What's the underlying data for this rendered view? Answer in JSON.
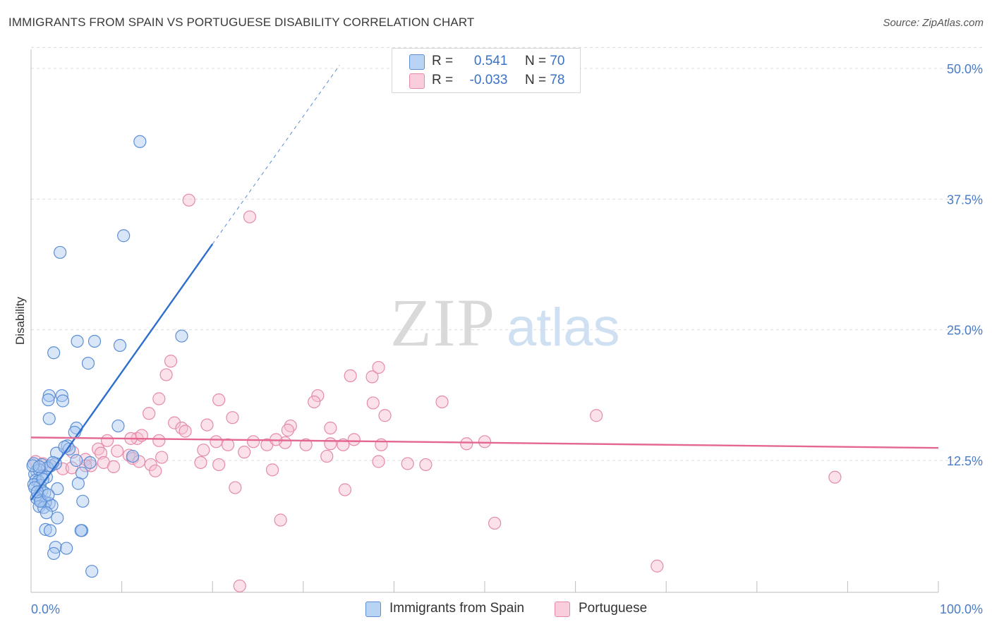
{
  "title": "IMMIGRANTS FROM SPAIN VS PORTUGUESE DISABILITY CORRELATION CHART",
  "source": "Source: ZipAtlas.com",
  "watermark": {
    "zip": "ZIP",
    "atlas": "atlas"
  },
  "legend": {
    "rows": [
      {
        "r_label": "R =",
        "r_value": "0.541",
        "n_label": "N =",
        "n_value": "70"
      },
      {
        "r_label": "R =",
        "r_value": "-0.033",
        "n_label": "N =",
        "n_value": "78"
      }
    ]
  },
  "bottom_legend": [
    "Immigrants from Spain",
    "Portuguese"
  ],
  "colors": {
    "spain_fill": "#a9c8f0",
    "spain_stroke": "#5b8fd6",
    "spain_line": "#2f6fcc",
    "portuguese_fill": "#f6bfd0",
    "portuguese_stroke": "#e58aa8",
    "portuguese_line": "#e3678f",
    "tick_text": "#4a7cc7",
    "grid": "#dcdcdc"
  },
  "chart_data": {
    "type": "scatter",
    "title": "IMMIGRANTS FROM SPAIN VS PORTUGUESE DISABILITY CORRELATION CHART",
    "xlabel": "",
    "ylabel": "Disability",
    "xlim": [
      0,
      100
    ],
    "ylim": [
      0,
      52
    ],
    "x_tick_labels": [
      "0.0%",
      "100.0%"
    ],
    "y_ticks": [
      12.5,
      25.0,
      37.5,
      50.0
    ],
    "y_tick_labels": [
      "12.5%",
      "25.0%",
      "37.5%",
      "50.0%"
    ],
    "grid": true,
    "legend_position": "top-center",
    "series": [
      {
        "name": "Immigrants from Spain",
        "r": 0.541,
        "n": 70,
        "trend": {
          "x0": 0.0,
          "y0": 8.7,
          "x1": 20.0,
          "y1": 33.2,
          "dashed_to_x": 34.0,
          "dashed_to_y": 50.3
        },
        "points": [
          [
            12.0,
            43.0
          ],
          [
            10.2,
            34.0
          ],
          [
            3.2,
            32.4
          ],
          [
            16.6,
            24.4
          ],
          [
            5.1,
            23.9
          ],
          [
            7.0,
            23.9
          ],
          [
            9.8,
            23.5
          ],
          [
            2.5,
            22.8
          ],
          [
            6.3,
            21.8
          ],
          [
            2.0,
            18.7
          ],
          [
            3.4,
            18.7
          ],
          [
            1.9,
            18.3
          ],
          [
            3.5,
            18.2
          ],
          [
            2.0,
            16.5
          ],
          [
            5.0,
            15.6
          ],
          [
            4.8,
            15.2
          ],
          [
            9.6,
            15.8
          ],
          [
            4.0,
            13.9
          ],
          [
            4.2,
            13.6
          ],
          [
            2.8,
            13.2
          ],
          [
            11.2,
            12.9
          ],
          [
            5.0,
            12.5
          ],
          [
            6.5,
            12.3
          ],
          [
            1.2,
            12.1
          ],
          [
            2.2,
            12.0
          ],
          [
            2.7,
            12.2
          ],
          [
            0.3,
            12.2
          ],
          [
            0.6,
            11.5
          ],
          [
            1.8,
            11.8
          ],
          [
            0.4,
            11.2
          ],
          [
            0.9,
            11.6
          ],
          [
            1.2,
            11.0
          ],
          [
            5.6,
            11.3
          ],
          [
            1.7,
            10.9
          ],
          [
            0.5,
            10.6
          ],
          [
            0.8,
            10.5
          ],
          [
            1.0,
            10.1
          ],
          [
            0.3,
            10.2
          ],
          [
            5.2,
            10.3
          ],
          [
            2.9,
            9.8
          ],
          [
            1.2,
            9.6
          ],
          [
            1.5,
            9.4
          ],
          [
            0.8,
            9.1
          ],
          [
            0.6,
            8.9
          ],
          [
            1.1,
            8.7
          ],
          [
            2.0,
            8.4
          ],
          [
            1.6,
            8.5
          ],
          [
            0.9,
            8.1
          ],
          [
            1.4,
            8.0
          ],
          [
            2.3,
            8.2
          ],
          [
            5.7,
            8.6
          ],
          [
            1.7,
            7.5
          ],
          [
            2.9,
            7.0
          ],
          [
            1.6,
            5.9
          ],
          [
            2.1,
            5.8
          ],
          [
            5.6,
            5.8
          ],
          [
            5.5,
            5.8
          ],
          [
            2.7,
            4.2
          ],
          [
            3.9,
            4.1
          ],
          [
            2.5,
            3.6
          ],
          [
            6.7,
            1.9
          ],
          [
            0.2,
            12.0
          ],
          [
            0.4,
            9.9
          ],
          [
            1.0,
            8.6
          ],
          [
            0.7,
            9.5
          ],
          [
            1.9,
            9.2
          ],
          [
            2.4,
            12.3
          ],
          [
            3.7,
            13.8
          ],
          [
            1.3,
            10.7
          ],
          [
            0.9,
            11.9
          ]
        ]
      },
      {
        "name": "Portuguese",
        "r": -0.033,
        "n": 78,
        "trend": {
          "x0": 0.0,
          "y0": 14.7,
          "x1": 100.0,
          "y1": 13.7
        },
        "points": [
          [
            17.4,
            37.4
          ],
          [
            24.1,
            35.8
          ],
          [
            15.4,
            22.0
          ],
          [
            14.9,
            20.7
          ],
          [
            35.2,
            20.6
          ],
          [
            37.6,
            20.5
          ],
          [
            38.3,
            21.4
          ],
          [
            14.1,
            18.4
          ],
          [
            20.7,
            18.3
          ],
          [
            31.6,
            18.7
          ],
          [
            31.2,
            18.1
          ],
          [
            37.7,
            18.0
          ],
          [
            45.3,
            18.1
          ],
          [
            62.3,
            16.8
          ],
          [
            13.0,
            17.0
          ],
          [
            15.8,
            16.1
          ],
          [
            22.2,
            16.6
          ],
          [
            39.0,
            16.8
          ],
          [
            19.4,
            15.9
          ],
          [
            16.6,
            15.6
          ],
          [
            28.6,
            15.8
          ],
          [
            33.0,
            15.6
          ],
          [
            28.3,
            15.4
          ],
          [
            8.4,
            14.4
          ],
          [
            11.7,
            14.6
          ],
          [
            14.1,
            14.4
          ],
          [
            17.0,
            15.3
          ],
          [
            11.0,
            14.6
          ],
          [
            12.2,
            14.9
          ],
          [
            20.4,
            14.3
          ],
          [
            21.7,
            14.0
          ],
          [
            26.0,
            14.0
          ],
          [
            24.5,
            14.3
          ],
          [
            28.0,
            14.2
          ],
          [
            33.0,
            14.1
          ],
          [
            30.3,
            14.0
          ],
          [
            35.6,
            14.5
          ],
          [
            38.6,
            14.0
          ],
          [
            48.0,
            14.1
          ],
          [
            50.0,
            14.3
          ],
          [
            34.4,
            14.0
          ],
          [
            27.0,
            14.5
          ],
          [
            4.6,
            13.3
          ],
          [
            7.4,
            13.6
          ],
          [
            10.8,
            13.0
          ],
          [
            7.7,
            13.2
          ],
          [
            9.5,
            13.4
          ],
          [
            11.2,
            12.7
          ],
          [
            14.4,
            12.8
          ],
          [
            19.0,
            13.5
          ],
          [
            23.5,
            13.3
          ],
          [
            32.6,
            12.9
          ],
          [
            6.0,
            12.6
          ],
          [
            8.0,
            12.3
          ],
          [
            6.6,
            12.0
          ],
          [
            11.9,
            12.4
          ],
          [
            13.2,
            12.1
          ],
          [
            18.7,
            12.3
          ],
          [
            20.7,
            12.1
          ],
          [
            38.3,
            12.4
          ],
          [
            41.5,
            12.2
          ],
          [
            43.5,
            12.1
          ],
          [
            0.5,
            12.4
          ],
          [
            1.3,
            12.2
          ],
          [
            2.1,
            12.0
          ],
          [
            3.5,
            11.7
          ],
          [
            4.5,
            11.8
          ],
          [
            6.0,
            12.0
          ],
          [
            9.1,
            11.9
          ],
          [
            13.7,
            11.5
          ],
          [
            26.6,
            11.6
          ],
          [
            22.5,
            9.9
          ],
          [
            34.6,
            9.7
          ],
          [
            88.6,
            10.9
          ],
          [
            27.5,
            6.8
          ],
          [
            51.1,
            6.5
          ],
          [
            69.0,
            2.4
          ],
          [
            23.0,
            0.5
          ]
        ]
      }
    ]
  }
}
